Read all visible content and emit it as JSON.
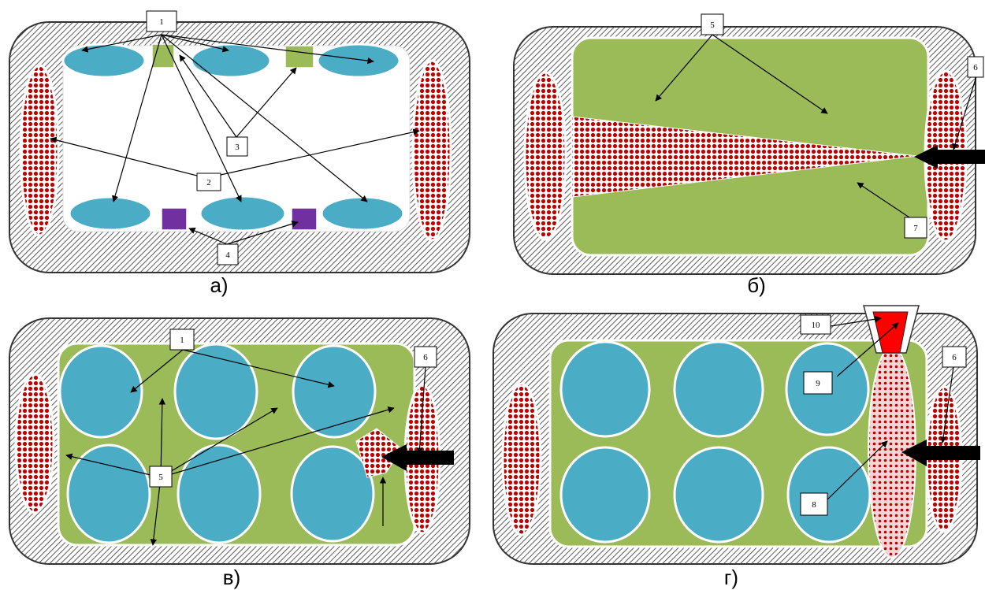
{
  "panels": {
    "a": {
      "caption": "а)"
    },
    "b": {
      "caption": "б)"
    },
    "v": {
      "caption": "в)"
    },
    "g": {
      "caption": "г)"
    }
  },
  "labels": {
    "l1": "1",
    "l2": "2",
    "l3": "3",
    "l4": "4",
    "l5": "5",
    "l6": "6",
    "l7": "7",
    "l8": "8",
    "l9": "9",
    "l10": "10"
  },
  "colors": {
    "shell_hatch": "#333333",
    "cytoplasm_green": "#9bbb59",
    "organelle_blue": "#4bacc6",
    "pore_green": "#9bbb59",
    "pore_purple": "#7030a0",
    "pathogen_red": "#c00000",
    "injector_red": "#ff0000"
  }
}
